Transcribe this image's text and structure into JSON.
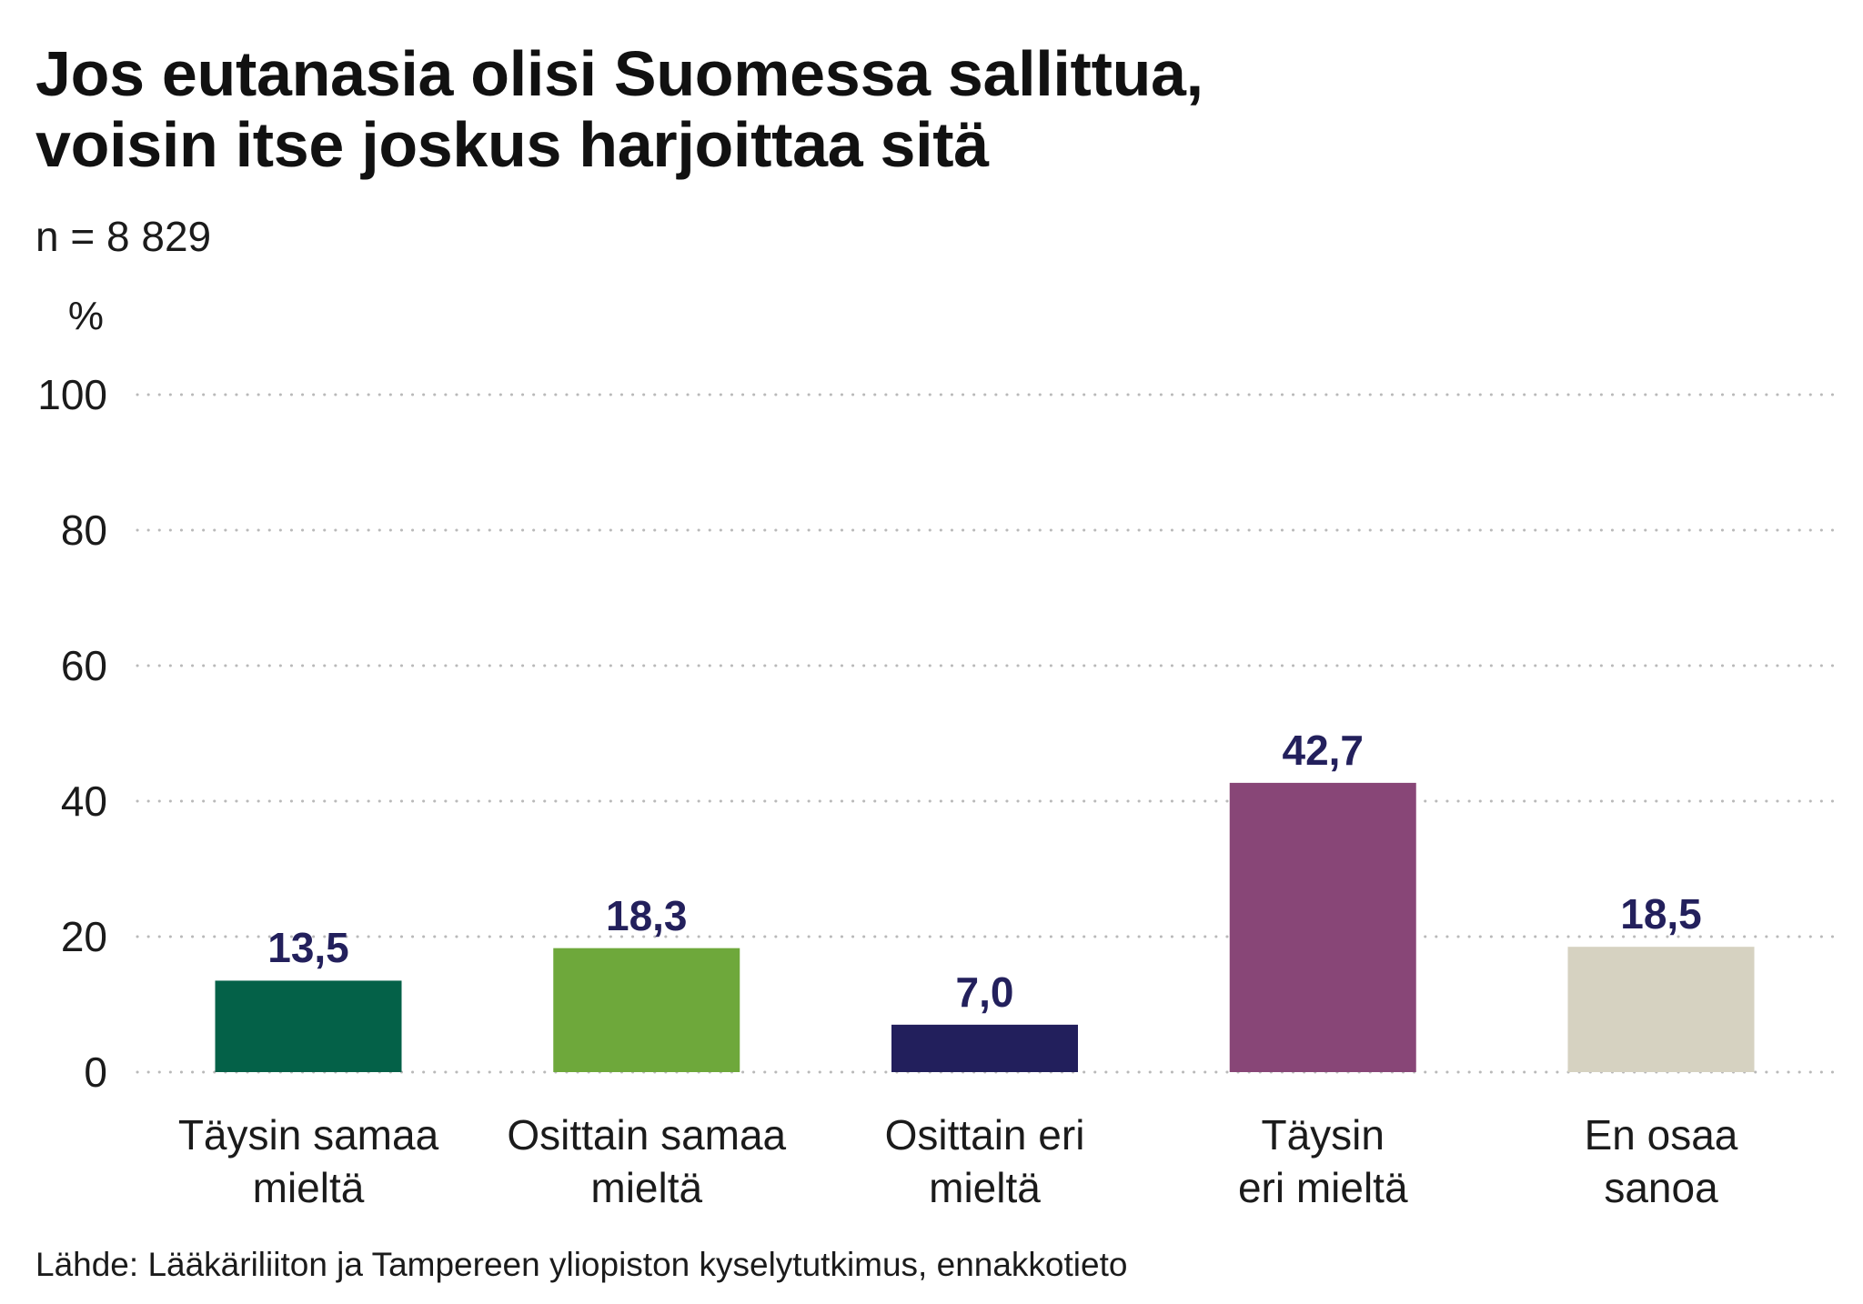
{
  "chart_data": {
    "type": "bar",
    "title": "Jos eutanasia olisi Suomessa sallittua,\nvoisin itse joskus harjoittaa sitä",
    "subtitle": "n = 8 829",
    "ylabel": "%",
    "categories": [
      "Täysin samaa\nmieltä",
      "Osittain samaa\nmieltä",
      "Osittain eri\nmieltä",
      "Täysin\neri mieltä",
      "En osaa\nsanoa"
    ],
    "values": [
      13.5,
      18.3,
      7.0,
      42.7,
      18.5
    ],
    "value_labels": [
      "13,5",
      "18,3",
      "7,0",
      "42,7",
      "18,5"
    ],
    "colors": [
      "#046148",
      "#6ea83b",
      "#221f5c",
      "#884677",
      "#d6d2c1"
    ],
    "ylim": [
      0,
      100
    ],
    "yticks": [
      0,
      20,
      40,
      60,
      80,
      100
    ],
    "grid": true,
    "source": "Lähde: Lääkäriliiton ja Tampereen yliopiston kyselytutkimus, ennakkotieto"
  },
  "colors": {
    "value_label": "#23205c",
    "grid": "#b9b9b9",
    "text": "#1b1b1b"
  }
}
